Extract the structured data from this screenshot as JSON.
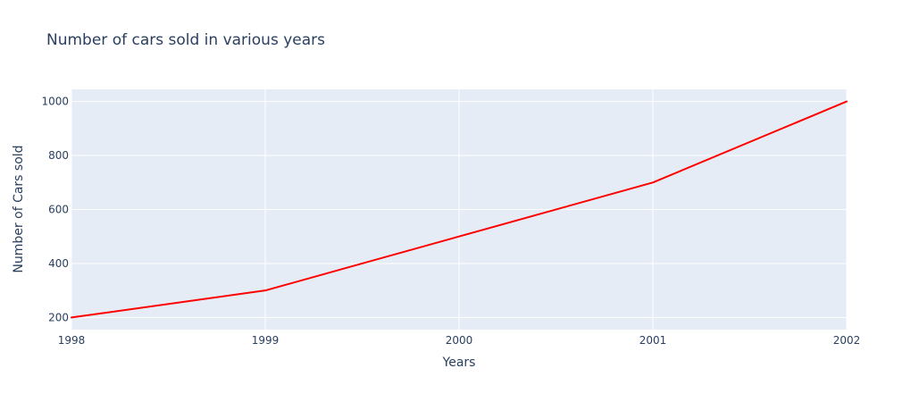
{
  "chart_data": {
    "type": "line",
    "title": "Number of cars sold in various years",
    "xlabel": "Years",
    "ylabel": "Number of Cars sold",
    "x": [
      1998,
      1999,
      2000,
      2001,
      2002
    ],
    "xlim": [
      1998,
      2002
    ],
    "ylim": [
      155,
      1045
    ],
    "x_ticks": [
      1998,
      1999,
      2000,
      2001,
      2002
    ],
    "y_ticks": [
      200,
      400,
      600,
      800,
      1000
    ],
    "grid": true,
    "plot_background": "#e5ecf6",
    "series": [
      {
        "values": [
          200,
          300,
          500,
          700,
          1000
        ],
        "color": "#ff0000"
      }
    ]
  }
}
